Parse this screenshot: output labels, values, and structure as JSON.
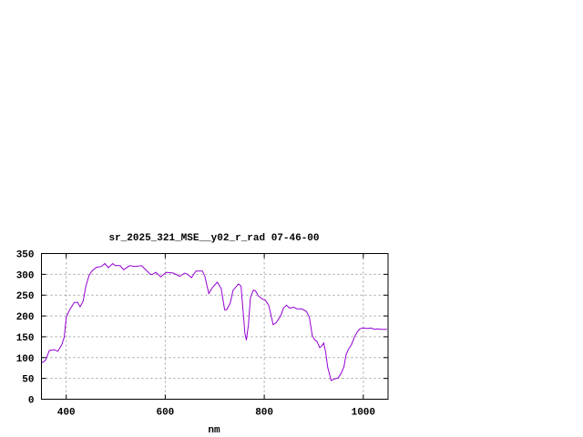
{
  "chart_data": {
    "type": "line",
    "title": "sr_2025_321_MSE__y02_r_rad 07-46-00",
    "xlabel": "nm",
    "ylabel": "",
    "xlim": [
      350,
      1050
    ],
    "ylim": [
      0,
      350
    ],
    "xticks": [
      400,
      600,
      800,
      1000
    ],
    "yticks": [
      0,
      50,
      100,
      150,
      200,
      250,
      300,
      350
    ],
    "grid": true,
    "legend": "none",
    "series": [
      {
        "color": "#9400d3",
        "x": [
          350,
          358,
          366,
          376,
          383,
          391,
          396,
          400,
          407,
          416,
          423,
          428,
          434,
          440,
          446,
          452,
          461,
          471,
          478,
          485,
          494,
          499,
          509,
          516,
          528,
          539,
          552,
          559,
          570,
          574,
          581,
          591,
          602,
          617,
          629,
          639,
          644,
          653,
          662,
          675,
          680,
          688,
          695,
          705,
          713,
          720,
          724,
          731,
          737,
          748,
          753,
          758,
          761,
          764,
          768,
          772,
          778,
          782,
          788,
          796,
          802,
          809,
          818,
          824,
          833,
          839,
          845,
          851,
          860,
          866,
          876,
          885,
          891,
          897,
          902,
          906,
          912,
          916,
          920,
          924,
          928,
          935,
          943,
          949,
          955,
          961,
          965,
          970,
          976,
          982,
          988,
          993,
          1000,
          1009,
          1016,
          1022,
          1028,
          1037,
          1048
        ],
        "y": [
          87,
          93,
          117,
          119,
          115,
          131,
          149,
          197,
          215,
          232,
          233,
          222,
          235,
          273,
          297,
          308,
          317,
          319,
          326,
          316,
          326,
          321,
          321,
          311,
          321,
          319,
          321,
          313,
          300,
          300,
          305,
          294,
          305,
          303,
          295,
          303,
          301,
          292,
          308,
          308,
          295,
          254,
          268,
          281,
          266,
          215,
          215,
          230,
          262,
          277,
          272,
          200,
          157,
          142,
          179,
          244,
          262,
          261,
          248,
          241,
          238,
          226,
          179,
          184,
          200,
          219,
          226,
          219,
          221,
          217,
          217,
          211,
          197,
          153,
          142,
          140,
          124,
          128,
          135,
          113,
          77,
          45,
          49,
          51,
          62,
          78,
          106,
          120,
          131,
          149,
          162,
          169,
          171,
          170,
          171,
          168,
          169,
          168,
          168
        ]
      }
    ]
  }
}
